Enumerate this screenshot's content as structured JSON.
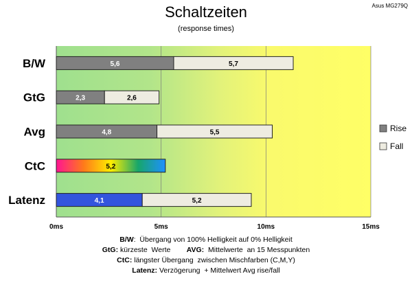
{
  "header": {
    "title": "Schaltzeiten",
    "subtitle": "(response times)",
    "model": "Asus MG279Q"
  },
  "chart_data": {
    "type": "bar",
    "orientation": "horizontal",
    "stacked": true,
    "title": "Schaltzeiten",
    "subtitle": "(response times)",
    "categories": [
      "B/W",
      "GtG",
      "Avg",
      "CtC",
      "Latenz"
    ],
    "series": [
      {
        "name": "Rise",
        "color": "#808080",
        "values": [
          5.6,
          2.3,
          4.8,
          5.2,
          4.1
        ],
        "labels": [
          "5,6",
          "2,3",
          "4,8",
          "5,2",
          "4,1"
        ]
      },
      {
        "name": "Fall",
        "color": "#eeece1",
        "values": [
          5.7,
          2.6,
          5.5,
          null,
          5.2
        ],
        "labels": [
          "5,7",
          "2,6",
          "5,5",
          "",
          "5,2"
        ]
      }
    ],
    "special_fills": {
      "CtC": "rainbow-gradient",
      "Latenz": "#3355dd"
    },
    "x_ticks": [
      "0ms",
      "5ms",
      "10ms",
      "15ms"
    ],
    "x_tick_values": [
      0,
      5,
      10,
      15
    ],
    "xlim": [
      0,
      15
    ],
    "background_gradient": [
      "#a6e38f",
      "#f4f47a",
      "#ffff66"
    ],
    "grid": true,
    "legend_position": "right"
  },
  "legend": {
    "rise": "Rise",
    "fall": "Fall"
  },
  "notes": {
    "line1_key": "B/W",
    "line1_text": ":  Übergang von 100% Helligkeit auf 0% Helligkeit",
    "line2_key_a": "GtG:",
    "line2_text_a": " kürzeste  Werte        ",
    "line2_key_b": "AVG:",
    "line2_text_b": "  Mittelwerte  an 15 Messpunkten",
    "line3_key": "CtC:",
    "line3_text": " längster Übergang  zwischen Mischfarben (C,M,Y)",
    "line4_key": "Latenz:",
    "line4_text": " Verzögerung  + Mittelwert Avg rise/fall"
  }
}
